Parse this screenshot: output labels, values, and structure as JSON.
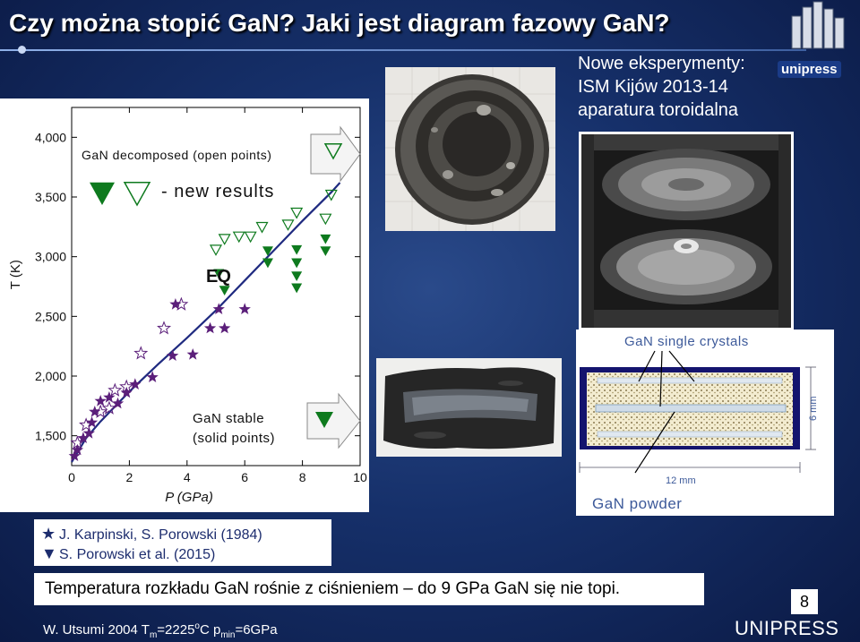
{
  "slide": {
    "title": "Czy można stopić GaN? Jaki jest diagram fazowy GaN?",
    "page_number": "8",
    "footer_left_prefix": "W. Utsumi 2004 T",
    "footer_left_sub1": "m",
    "footer_left_mid": "=2225",
    "footer_left_sup": "o",
    "footer_left_mid2": "C p",
    "footer_left_sub2": "min",
    "footer_left_suffix": "=6GPa",
    "footer_right": "UNIPRESS",
    "logo_text": "unipress"
  },
  "experiment": {
    "line1": "Nowe eksperymenty:",
    "line2": "ISM Kijów 2013-14",
    "line3": "aparatura toroidalna"
  },
  "crystal_diagram": {
    "single_crystals_label": "GaN single crystals",
    "powder_label": "GaN powder",
    "width_label": "12 mm",
    "height_label": "6 mm"
  },
  "references": {
    "star_label": "J. Karpinski, S. Porowski (1984)",
    "triangle_label": "S. Porowski et al. (2015)",
    "star_icon": "star-icon",
    "triangle_icon": "triangle-down-icon"
  },
  "conclusion": "Temperatura rozkładu GaN rośnie z ciśnieniem – do 9 GPa GaN się nie topi.",
  "chart_data": {
    "type": "scatter",
    "xlabel": "P (GPa)",
    "ylabel": "T (K)",
    "xlim": [
      0,
      10
    ],
    "ylim": [
      1250,
      4250
    ],
    "x_ticks": [
      "0",
      "2",
      "4",
      "6",
      "8",
      "10"
    ],
    "x_tick_values": [
      0,
      2,
      4,
      6,
      8,
      10
    ],
    "y_ticks": [
      "1,500",
      "2,000",
      "2,500",
      "3,000",
      "3,500",
      "4,000"
    ],
    "y_tick_values": [
      1500,
      2000,
      2500,
      3000,
      3500,
      4000
    ],
    "annotations": {
      "decomposed": "GaN decomposed (open points)",
      "new_results": "- new results",
      "eq": "EQ",
      "stable_line1": "GaN stable",
      "stable_line2": "(solid points)"
    },
    "colors": {
      "star": "#5b1f7a",
      "triangle": "#0e7a1e",
      "curve": "#1f2a80",
      "axis": "#000000"
    },
    "series": [
      {
        "marker": "star-filled",
        "points": [
          [
            0.1,
            1330
          ],
          [
            0.2,
            1380
          ],
          [
            0.4,
            1480
          ],
          [
            0.6,
            1520
          ],
          [
            0.7,
            1610
          ],
          [
            0.8,
            1700
          ],
          [
            1.0,
            1790
          ],
          [
            1.3,
            1820
          ],
          [
            1.6,
            1770
          ],
          [
            1.9,
            1860
          ],
          [
            2.2,
            1930
          ],
          [
            2.8,
            1990
          ],
          [
            3.5,
            2170
          ],
          [
            4.2,
            2180
          ],
          [
            4.8,
            2400
          ],
          [
            5.3,
            2400
          ],
          [
            5.1,
            2560
          ],
          [
            6.0,
            2560
          ],
          [
            3.6,
            2600
          ]
        ]
      },
      {
        "marker": "star-open",
        "points": [
          [
            0.2,
            1440
          ],
          [
            0.5,
            1590
          ],
          [
            1.0,
            1700
          ],
          [
            1.3,
            1730
          ],
          [
            1.5,
            1880
          ],
          [
            1.9,
            1910
          ],
          [
            2.4,
            2190
          ],
          [
            3.2,
            2400
          ],
          [
            3.8,
            2600
          ]
        ]
      },
      {
        "marker": "triangle-filled",
        "points": [
          [
            5.1,
            2860
          ],
          [
            5.3,
            2720
          ],
          [
            6.8,
            2950
          ],
          [
            6.8,
            3050
          ],
          [
            7.8,
            2740
          ],
          [
            7.8,
            2840
          ],
          [
            7.8,
            2950
          ],
          [
            7.8,
            3060
          ],
          [
            8.8,
            3050
          ],
          [
            8.8,
            3150
          ]
        ]
      },
      {
        "marker": "triangle-open",
        "points": [
          [
            5.0,
            3060
          ],
          [
            5.3,
            3150
          ],
          [
            5.8,
            3170
          ],
          [
            6.2,
            3170
          ],
          [
            6.6,
            3250
          ],
          [
            7.5,
            3270
          ],
          [
            7.8,
            3370
          ],
          [
            8.8,
            3320
          ],
          [
            9.0,
            3520
          ]
        ]
      }
    ],
    "curve": [
      [
        0,
        1280
      ],
      [
        0.5,
        1480
      ],
      [
        1,
        1620
      ],
      [
        2,
        1870
      ],
      [
        3,
        2100
      ],
      [
        4,
        2320
      ],
      [
        5,
        2550
      ],
      [
        6,
        2800
      ],
      [
        7,
        3050
      ],
      [
        8,
        3300
      ],
      [
        9,
        3540
      ],
      [
        9.3,
        3620
      ]
    ]
  }
}
